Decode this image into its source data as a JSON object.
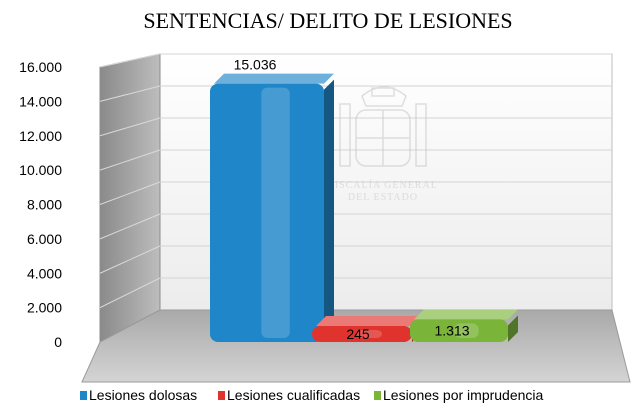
{
  "chart_data": {
    "type": "bar",
    "title": "SENTENCIAS/ DELITO DE LESIONES",
    "xlabel": "",
    "ylabel": "",
    "ylim": [
      0,
      16000
    ],
    "yticks": [
      "0",
      "2.000",
      "4.000",
      "6.000",
      "8.000",
      "10.000",
      "12.000",
      "14.000",
      "16.000"
    ],
    "grid": true,
    "legend_position": "bottom",
    "series": [
      {
        "name": "Lesiones dolosas",
        "value": 15036,
        "label": "15.036",
        "color": "#1e86c9"
      },
      {
        "name": "Lesiones cualificadas",
        "value": 245,
        "label": "245",
        "color": "#e0332e"
      },
      {
        "name": "Lesiones por imprudencia",
        "value": 1313,
        "label": "1.313",
        "color": "#7ab53a"
      }
    ]
  },
  "watermark": {
    "lines": [
      "FISCALÍA GENERAL",
      "DEL ESTADO"
    ],
    "icon": "coat-of-arms-icon"
  }
}
